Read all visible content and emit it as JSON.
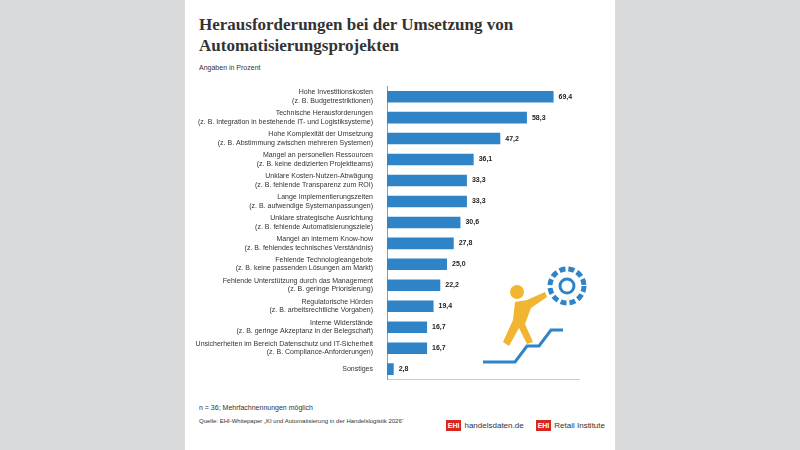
{
  "chart_data": {
    "type": "bar",
    "title": "Herausforderungen bei der Umsetzung von Automatisierungsprojekten",
    "subtitle": "Angaben in Prozent",
    "categories": [
      "Hohe Investitionskosten\n(z. B. Budgetrestriktionen)",
      "Technische Herausforderungen\n(z. B. Integration in bestehende IT- und Logistiksysteme)",
      "Hohe Komplexität der Umsetzung\n(z. B. Abstimmung zwischen mehreren Systemen)",
      "Mangel an personellen Ressourcen\n(z. B. keine dedizierten Projektteams)",
      "Unklare Kosten-Nutzen-Abwägung\n(z. B. fehlende Transparenz zum ROI)",
      "Lange Implementierungszeiten\n(z. B. aufwendige Systemanpassungen)",
      "Unklare strategische Ausrichtung\n(z. B. fehlende Automatisierungsziele)",
      "Mangel an internem Know-how\n(z. B. fehlendes technisches Verständnis)",
      "Fehlende Technologieangebote\n(z. B. keine passenden Lösungen am Markt)",
      "Fehlende Unterstützung durch das Management\n(z. B. geringe Priorisierung)",
      "Regulatorische Hürden\n(z. B. arbeitsrechtliche Vorgaben)",
      "Interne Widerstände\n(z. B. geringe Akzeptanz in der Belegschaft)",
      "Unsicherheiten im Bereich Datenschutz und IT-Sicherheit\n(z. B. Compliance-Anforderungen)",
      "Sonstiges"
    ],
    "values": [
      69.4,
      58.3,
      47.2,
      36.1,
      33.3,
      33.3,
      30.6,
      27.8,
      25.0,
      22.2,
      19.4,
      16.7,
      16.7,
      2.8
    ],
    "value_labels": [
      "69,4",
      "58,3",
      "47,2",
      "36,1",
      "33,3",
      "33,3",
      "30,6",
      "27,8",
      "25,0",
      "22,2",
      "19,4",
      "16,7",
      "16,7",
      "2,8"
    ],
    "color": "#2f84c8",
    "orientation": "horizontal",
    "xlim": [
      0,
      80
    ],
    "grid": false,
    "data_labels": true,
    "tick_labels": "y",
    "footnote": "n = 36; Mehrfachnennungen möglich",
    "source": "Quelle: EHI-Whitepaper „KI und Automatisierung in der Handelslogistik 2026“",
    "logos": [
      {
        "mark": "EHI",
        "text": "handelsdaten.de"
      },
      {
        "mark": "EHI",
        "text": "Retail Institute"
      }
    ]
  }
}
